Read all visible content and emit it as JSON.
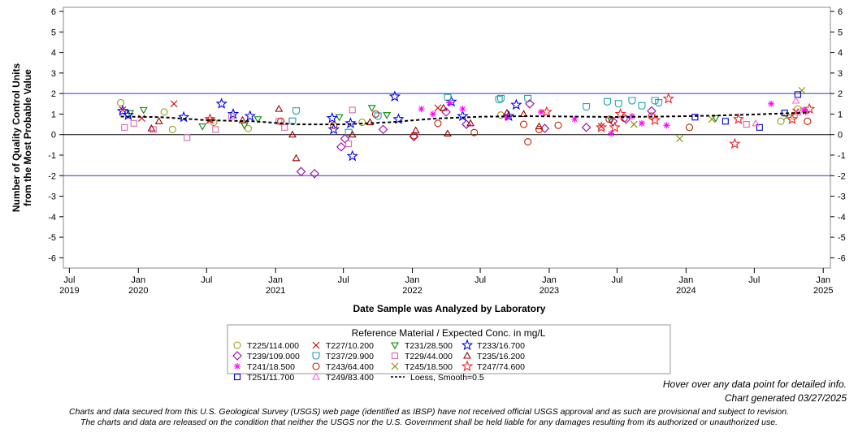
{
  "chart_data": {
    "type": "scatter",
    "xlabel": "Date Sample was Analyzed by Laboratory",
    "ylabel_lines": [
      "Number of Quality Control Units",
      "from the Most Probable Value"
    ],
    "x_ticks": [
      {
        "month": "Jul",
        "year": "2019",
        "date": "2019-07-01"
      },
      {
        "month": "Jan",
        "year": "2020",
        "date": "2020-01-01"
      },
      {
        "month": "Jul",
        "year": "",
        "date": "2020-07-01"
      },
      {
        "month": "Jan",
        "year": "2021",
        "date": "2021-01-01"
      },
      {
        "month": "Jul",
        "year": "",
        "date": "2021-07-01"
      },
      {
        "month": "Jan",
        "year": "2022",
        "date": "2022-01-01"
      },
      {
        "month": "Jul",
        "year": "",
        "date": "2022-07-01"
      },
      {
        "month": "Jan",
        "year": "2023",
        "date": "2023-01-01"
      },
      {
        "month": "Jul",
        "year": "",
        "date": "2023-07-01"
      },
      {
        "month": "Jan",
        "year": "2024",
        "date": "2024-01-01"
      },
      {
        "month": "Jul",
        "year": "",
        "date": "2024-07-01"
      },
      {
        "month": "Jan",
        "year": "2025",
        "date": "2025-01-01"
      }
    ],
    "xlim": [
      "2019-06-15",
      "2025-01-20"
    ],
    "ylim": [
      -6.5,
      6.2
    ],
    "y_ticks": [
      -6,
      -5,
      -4,
      -3,
      -2,
      -1,
      0,
      1,
      2,
      3,
      4,
      5,
      6
    ],
    "reference_lines": [
      {
        "y": 2,
        "color": "#3333cc"
      },
      {
        "y": -2,
        "color": "#3333cc"
      },
      {
        "y": 0,
        "color": "#000000"
      }
    ],
    "legend_title": "Reference Material / Expected Conc. in mg/L",
    "legend_position": "bottom",
    "series": [
      {
        "name": "T225/114.000",
        "marker": "circle",
        "color": "#9a9a1e",
        "points": [
          [
            "2019-11-15",
            1.55
          ],
          [
            "2020-03-10",
            1.1
          ],
          [
            "2020-04-01",
            0.25
          ],
          [
            "2020-07-20",
            0.6
          ],
          [
            "2020-10-20",
            0.3
          ],
          [
            "2021-08-20",
            0.6
          ],
          [
            "2022-08-25",
            0.95
          ],
          [
            "2024-09-10",
            0.65
          ],
          [
            "2024-10-15",
            0.9
          ],
          [
            "2024-10-25",
            1.25
          ]
        ]
      },
      {
        "name": "T227/10.200",
        "marker": "x",
        "color": "#cc0000",
        "points": [
          [
            "2019-11-20",
            1.2
          ],
          [
            "2020-01-10",
            0.8
          ],
          [
            "2020-04-05",
            1.5
          ],
          [
            "2020-07-10",
            0.7
          ],
          [
            "2022-03-10",
            1.3
          ],
          [
            "2023-05-20",
            0.4
          ],
          [
            "2024-10-20",
            1.1
          ]
        ]
      },
      {
        "name": "T231/28.500",
        "marker": "tri-down",
        "color": "#008800",
        "points": [
          [
            "2019-12-10",
            1.05
          ],
          [
            "2020-01-15",
            1.2
          ],
          [
            "2020-06-20",
            0.4
          ],
          [
            "2020-10-10",
            0.45
          ],
          [
            "2020-11-15",
            0.75
          ],
          [
            "2021-06-20",
            0.85
          ],
          [
            "2021-09-15",
            1.3
          ],
          [
            "2021-10-25",
            0.95
          ],
          [
            "2023-06-15",
            0.7
          ],
          [
            "2024-03-20",
            0.8
          ]
        ]
      },
      {
        "name": "T233/16.700",
        "marker": "star",
        "color": "#0000ee",
        "points": [
          [
            "2019-11-20",
            1.15
          ],
          [
            "2019-12-05",
            0.95
          ],
          [
            "2020-05-01",
            0.85
          ],
          [
            "2020-08-10",
            1.5
          ],
          [
            "2020-09-10",
            1.0
          ],
          [
            "2020-10-25",
            0.9
          ],
          [
            "2021-06-01",
            0.8
          ],
          [
            "2021-06-05",
            0.25
          ],
          [
            "2021-07-20",
            0.55
          ],
          [
            "2021-07-25",
            -1.05
          ],
          [
            "2021-11-15",
            1.85
          ],
          [
            "2021-11-25",
            0.75
          ],
          [
            "2022-04-15",
            1.6
          ],
          [
            "2022-05-15",
            0.9
          ],
          [
            "2022-09-15",
            0.9
          ],
          [
            "2022-10-05",
            1.45
          ]
        ]
      },
      {
        "name": "T239/109.000",
        "marker": "diamond",
        "color": "#9900aa",
        "points": [
          [
            "2021-03-10",
            -1.8
          ],
          [
            "2021-04-15",
            -1.9
          ],
          [
            "2021-06-25",
            -0.6
          ],
          [
            "2021-07-05",
            -0.2
          ],
          [
            "2021-10-15",
            0.25
          ],
          [
            "2022-01-05",
            -0.1
          ],
          [
            "2022-04-01",
            1.1
          ],
          [
            "2022-05-25",
            0.5
          ],
          [
            "2022-11-10",
            1.5
          ],
          [
            "2022-12-20",
            0.3
          ],
          [
            "2023-04-10",
            0.35
          ],
          [
            "2023-06-20",
            0.65
          ],
          [
            "2023-07-25",
            0.75
          ],
          [
            "2023-10-01",
            1.15
          ]
        ]
      },
      {
        "name": "T237/29.900",
        "marker": "shield",
        "color": "#22a0b0",
        "points": [
          [
            "2021-02-15",
            0.65
          ],
          [
            "2021-02-25",
            1.15
          ],
          [
            "2021-07-15",
            0.1
          ],
          [
            "2021-10-01",
            0.9
          ],
          [
            "2022-04-05",
            1.8
          ],
          [
            "2022-08-20",
            1.7
          ],
          [
            "2022-08-25",
            1.75
          ],
          [
            "2022-11-05",
            1.75
          ],
          [
            "2023-04-10",
            1.35
          ],
          [
            "2023-06-05",
            1.6
          ],
          [
            "2023-07-05",
            1.5
          ],
          [
            "2023-08-10",
            1.65
          ],
          [
            "2023-09-05",
            1.4
          ],
          [
            "2023-10-10",
            1.65
          ],
          [
            "2023-10-20",
            1.55
          ]
        ]
      },
      {
        "name": "T229/44.000",
        "marker": "square",
        "color": "#dd66aa",
        "points": [
          [
            "2019-11-25",
            0.35
          ],
          [
            "2019-12-20",
            0.55
          ],
          [
            "2020-02-10",
            0.25
          ],
          [
            "2020-05-10",
            -0.15
          ],
          [
            "2020-07-25",
            0.25
          ],
          [
            "2020-09-05",
            0.9
          ],
          [
            "2021-01-10",
            0.65
          ],
          [
            "2021-01-25",
            0.35
          ],
          [
            "2021-07-15",
            -0.45
          ],
          [
            "2021-07-25",
            1.2
          ],
          [
            "2024-06-10",
            0.5
          ]
        ]
      },
      {
        "name": "T235/16.200",
        "marker": "triangle",
        "color": "#990000",
        "points": [
          [
            "2020-02-05",
            0.3
          ],
          [
            "2020-02-25",
            0.65
          ],
          [
            "2020-10-05",
            0.7
          ],
          [
            "2021-01-10",
            1.25
          ],
          [
            "2021-02-15",
            0.0
          ],
          [
            "2021-02-25",
            -1.15
          ],
          [
            "2021-07-25",
            0.0
          ],
          [
            "2021-09-10",
            0.6
          ],
          [
            "2022-01-10",
            0.2
          ],
          [
            "2022-03-25",
            1.3
          ],
          [
            "2022-04-05",
            0.05
          ],
          [
            "2022-06-05",
            0.55
          ],
          [
            "2022-09-10",
            1.05
          ],
          [
            "2022-10-25",
            1.0
          ],
          [
            "2022-12-05",
            0.4
          ]
        ]
      },
      {
        "name": "T241/18.500",
        "marker": "asterisk",
        "color": "#ff00ff",
        "points": [
          [
            "2022-01-25",
            1.25
          ],
          [
            "2022-02-25",
            1.0
          ],
          [
            "2022-04-10",
            1.55
          ],
          [
            "2022-05-15",
            1.25
          ],
          [
            "2022-09-10",
            0.85
          ],
          [
            "2022-12-10",
            1.1
          ],
          [
            "2023-03-10",
            0.75
          ],
          [
            "2023-06-15",
            0.05
          ],
          [
            "2023-08-10",
            0.9
          ],
          [
            "2023-09-05",
            0.55
          ],
          [
            "2023-11-10",
            0.45
          ],
          [
            "2024-08-15",
            1.5
          ],
          [
            "2024-11-10",
            1.2
          ],
          [
            "2024-11-15",
            1.1
          ]
        ]
      },
      {
        "name": "T243/64.400",
        "marker": "circle-open",
        "color": "#bb2200",
        "points": [
          [
            "2021-01-15",
            0.65
          ],
          [
            "2021-06-05",
            0.45
          ],
          [
            "2021-09-25",
            1.0
          ],
          [
            "2022-01-05",
            -0.05
          ],
          [
            "2022-03-10",
            0.55
          ],
          [
            "2022-06-15",
            0.1
          ],
          [
            "2022-10-25",
            0.5
          ],
          [
            "2022-11-05",
            -0.35
          ],
          [
            "2022-12-05",
            0.25
          ],
          [
            "2023-01-25",
            0.45
          ],
          [
            "2023-06-10",
            0.75
          ],
          [
            "2023-07-20",
            0.8
          ],
          [
            "2023-10-01",
            0.9
          ],
          [
            "2024-01-10",
            0.35
          ],
          [
            "2024-11-20",
            0.65
          ]
        ]
      },
      {
        "name": "T245/18.500",
        "marker": "x-olive",
        "color": "#8a8a00",
        "points": [
          [
            "2023-08-15",
            0.5
          ],
          [
            "2023-12-15",
            -0.2
          ],
          [
            "2024-03-10",
            0.75
          ],
          [
            "2024-09-25",
            0.85
          ],
          [
            "2024-11-05",
            2.15
          ]
        ]
      },
      {
        "name": "T247/74.600",
        "marker": "star",
        "color": "#ee2222",
        "points": [
          [
            "2020-07-10",
            0.75
          ],
          [
            "2022-12-25",
            1.1
          ],
          [
            "2023-05-20",
            0.35
          ],
          [
            "2023-06-25",
            0.35
          ],
          [
            "2023-07-10",
            1.0
          ],
          [
            "2023-10-10",
            0.7
          ],
          [
            "2023-11-15",
            1.75
          ],
          [
            "2024-05-10",
            -0.45
          ],
          [
            "2024-05-20",
            0.75
          ],
          [
            "2024-10-10",
            0.75
          ],
          [
            "2024-11-25",
            1.25
          ]
        ]
      },
      {
        "name": "T251/11.700",
        "marker": "square",
        "color": "#0000cc",
        "points": [
          [
            "2024-01-25",
            0.85
          ],
          [
            "2024-04-15",
            0.65
          ],
          [
            "2024-07-15",
            0.35
          ],
          [
            "2024-09-20",
            1.05
          ],
          [
            "2024-10-25",
            1.95
          ]
        ]
      },
      {
        "name": "T249/83.400",
        "marker": "triangle",
        "color": "#ff66cc",
        "points": [
          [
            "2024-07-05",
            0.55
          ],
          [
            "2024-10-20",
            1.65
          ],
          [
            "2024-10-25",
            1.1
          ]
        ]
      }
    ],
    "loess": {
      "name": "Loess, Smooth=0.5",
      "color": "#000000",
      "points": [
        [
          "2019-11-15",
          0.88
        ],
        [
          "2020-03-01",
          0.85
        ],
        [
          "2020-07-01",
          0.7
        ],
        [
          "2020-11-01",
          0.65
        ],
        [
          "2021-03-01",
          0.5
        ],
        [
          "2021-07-01",
          0.5
        ],
        [
          "2021-11-01",
          0.6
        ],
        [
          "2022-03-01",
          0.78
        ],
        [
          "2022-07-01",
          0.87
        ],
        [
          "2022-11-01",
          0.9
        ],
        [
          "2023-03-01",
          0.88
        ],
        [
          "2023-07-01",
          0.86
        ],
        [
          "2023-11-01",
          0.88
        ],
        [
          "2024-03-01",
          0.92
        ],
        [
          "2024-07-01",
          0.98
        ],
        [
          "2024-11-25",
          1.08
        ]
      ]
    }
  },
  "footer": {
    "hover_note": "Hover over any data point for detailed info.",
    "generated": "Chart generated 03/27/2025",
    "disclaimer_1": "Charts and data secured from this U.S. Geological Survey (USGS) web page (identified as IBSP) have not received official USGS approval and as such are provisional and subject to revision.",
    "disclaimer_2": "The charts and data are released on the condition that neither the USGS nor the U.S. Government shall be held liable for any damages resulting from its authorized or unauthorized use."
  }
}
